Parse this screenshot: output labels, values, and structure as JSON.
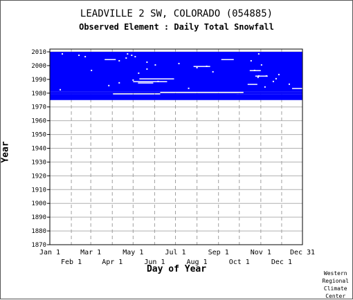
{
  "chart_data": {
    "type": "heatmap",
    "title": "LEADVILLE 2 SW, COLORADO   (054885)",
    "subtitle": "Observed Element : Daily Total Snowfall",
    "xlabel": "Day of Year",
    "ylabel": "Year",
    "ylim": [
      1870,
      2012
    ],
    "yticks": [
      2010,
      2000,
      1990,
      1980,
      1970,
      1960,
      1950,
      1940,
      1930,
      1920,
      1910,
      1900,
      1890,
      1880,
      1870
    ],
    "xlim": [
      1,
      365
    ],
    "xticks_top_row": [
      {
        "label": "Jan 1",
        "day": 1
      },
      {
        "label": "Mar 1",
        "day": 60
      },
      {
        "label": "May 1",
        "day": 121
      },
      {
        "label": "Jul 1",
        "day": 182
      },
      {
        "label": "Sep 1",
        "day": 244
      },
      {
        "label": "Nov 1",
        "day": 305
      },
      {
        "label": "Dec 31",
        "day": 365
      }
    ],
    "xticks_bottom_row": [
      {
        "label": "Feb 1",
        "day": 32
      },
      {
        "label": "Apr 1",
        "day": 91
      },
      {
        "label": "Jun 1",
        "day": 152
      },
      {
        "label": "Aug 1",
        "day": 213
      },
      {
        "label": "Oct 1",
        "day": 274
      },
      {
        "label": "Dec 1",
        "day": 335
      }
    ],
    "grid": true,
    "color_observed": "#0000ff",
    "observed_year_range": [
      1975,
      2009
    ],
    "full_coverage_blocks": [
      {
        "year_start": 1981,
        "year_end": 2009
      },
      {
        "year_start": 1975,
        "year_end": 1978
      }
    ],
    "partial_rows": [
      {
        "year": 1980,
        "day_start": 1,
        "day_end": 160
      },
      {
        "year": 1980,
        "day_start": 280,
        "day_end": 365
      },
      {
        "year": 1979,
        "day_start": 1,
        "day_end": 92
      },
      {
        "year": 1979,
        "day_start": 160,
        "day_end": 365
      },
      {
        "year": 1978,
        "day_start": 1,
        "day_end": 270
      },
      {
        "year": 1977,
        "day_start": 1,
        "day_end": 365
      }
    ],
    "gap_marks": [
      {
        "year": 2008,
        "day": 18
      },
      {
        "year": 2007,
        "day": 42
      },
      {
        "year": 2006,
        "day": 51
      },
      {
        "year": 2008,
        "day": 112
      },
      {
        "year": 2007,
        "day": 118
      },
      {
        "year": 2006,
        "day": 123
      },
      {
        "year": 2005,
        "day": 110
      },
      {
        "year": 2003,
        "day": 100
      },
      {
        "year": 2002,
        "day": 140
      },
      {
        "year": 2001,
        "day": 186
      },
      {
        "year": 2000,
        "day": 152
      },
      {
        "year": 1999,
        "day": 226
      },
      {
        "year": 1998,
        "day": 212
      },
      {
        "year": 1997,
        "day": 140
      },
      {
        "year": 1996,
        "day": 60
      },
      {
        "year": 1995,
        "day": 235
      },
      {
        "year": 1994,
        "day": 128
      },
      {
        "year": 1993,
        "day": 330
      },
      {
        "year": 1992,
        "day": 301
      },
      {
        "year": 1991,
        "day": 300
      },
      {
        "year": 1990,
        "day": 326
      },
      {
        "year": 1989,
        "day": 120
      },
      {
        "year": 1988,
        "day": 156
      },
      {
        "year": 1987,
        "day": 100
      },
      {
        "year": 1986,
        "day": 345
      },
      {
        "year": 1985,
        "day": 85
      },
      {
        "year": 1984,
        "day": 310
      },
      {
        "year": 1983,
        "day": 200
      },
      {
        "year": 1982,
        "day": 15
      },
      {
        "year": 2008,
        "day": 301
      },
      {
        "year": 2003,
        "day": 290
      },
      {
        "year": 2000,
        "day": 305
      },
      {
        "year": 1996,
        "day": 295
      },
      {
        "year": 1992,
        "day": 312
      },
      {
        "year": 1988,
        "day": 322
      }
    ],
    "gap_segments": [
      {
        "year": 2004,
        "day_start": 80,
        "day_end": 96
      },
      {
        "year": 2004,
        "day_start": 248,
        "day_end": 266
      },
      {
        "year": 1999,
        "day_start": 208,
        "day_end": 232
      },
      {
        "year": 1996,
        "day_start": 289,
        "day_end": 305
      },
      {
        "year": 1992,
        "day_start": 297,
        "day_end": 315
      },
      {
        "year": 1990,
        "day_start": 130,
        "day_end": 180
      },
      {
        "year": 1988,
        "day_start": 121,
        "day_end": 170
      },
      {
        "year": 1987,
        "day_start": 128,
        "day_end": 150
      },
      {
        "year": 1986,
        "day_start": 286,
        "day_end": 300
      },
      {
        "year": 1983,
        "day_start": 350,
        "day_end": 365
      }
    ]
  },
  "credit": [
    "Western",
    "Regional",
    "Climate",
    "Center"
  ]
}
